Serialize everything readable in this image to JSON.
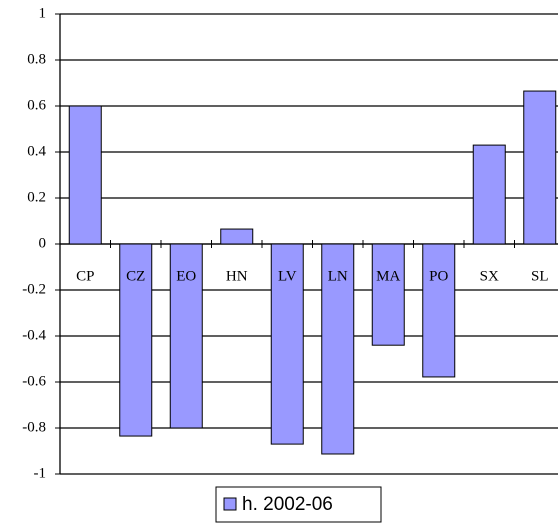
{
  "chart_data": {
    "type": "bar",
    "categories": [
      "CP",
      "CZ",
      "EO",
      "HN",
      "LV",
      "LN",
      "MA",
      "PO",
      "SX",
      "SL"
    ],
    "series": [
      {
        "name": "h. 2002-06",
        "color": "#9999ff",
        "values": [
          0.6,
          -0.835,
          -0.8,
          0.065,
          -0.87,
          -0.913,
          -0.44,
          -0.578,
          0.43,
          0.665
        ]
      }
    ],
    "ylim": [
      -1,
      1
    ],
    "yticks": [
      -1,
      -0.8,
      -0.6,
      -0.4,
      -0.2,
      0,
      0.2,
      0.4,
      0.6,
      0.8,
      1
    ],
    "grid": true,
    "legend": "bottom"
  }
}
